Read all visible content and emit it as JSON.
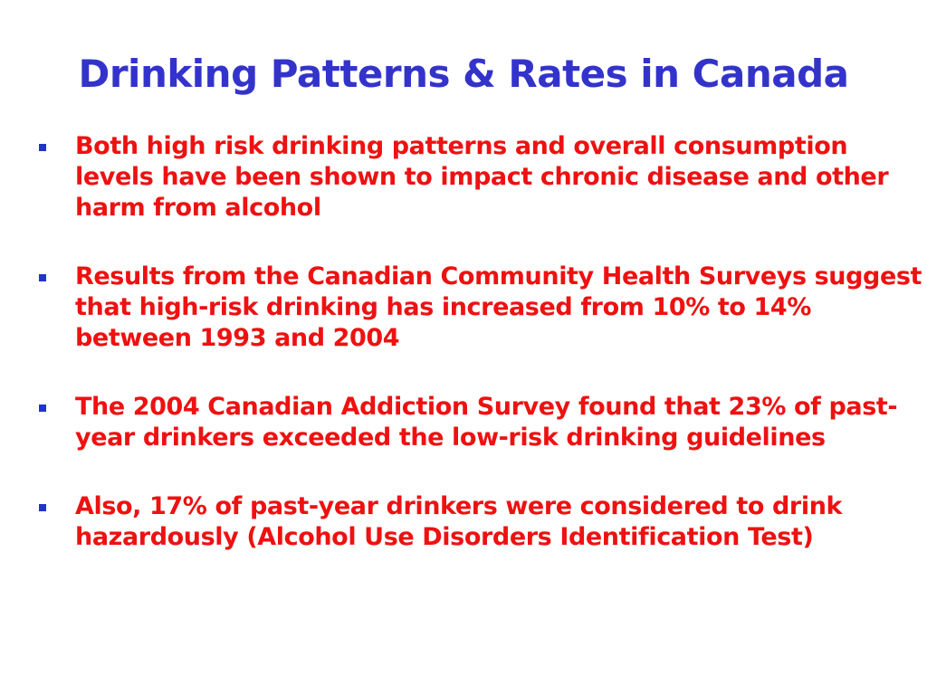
{
  "slide": {
    "title": "Drinking Patterns & Rates in Canada",
    "title_color": "#3333CC",
    "text_color": "#EE1111",
    "bullet_color": "#2233CC",
    "bullets": [
      {
        "text": "Both high risk drinking patterns and overall consumption levels have been shown to impact chronic disease and other harm from alcohol"
      },
      {
        "text": "Results from the Canadian Community Health Surveys suggest that high-risk drinking has increased from 10% to 14% between 1993 and 2004"
      },
      {
        "text": "The 2004 Canadian Addiction Survey found that 23% of past-year drinkers exceeded the low-risk drinking guidelines"
      },
      {
        "text": "Also, 17% of past-year drinkers were considered to drink hazardously (Alcohol Use Disorders Identification Test)"
      }
    ]
  }
}
